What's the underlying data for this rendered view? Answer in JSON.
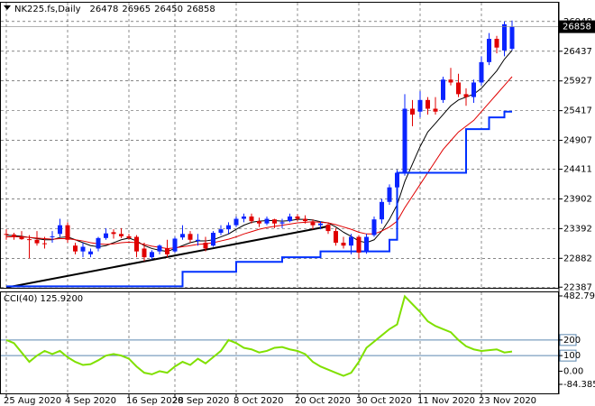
{
  "chart_data": [
    {
      "type": "candlestick",
      "title": "NK225.fs,Daily",
      "categories": [
        "25 Aug 2020",
        null,
        null,
        null,
        null,
        null,
        null,
        null,
        "4 Sep 2020",
        null,
        null,
        null,
        null,
        null,
        null,
        null,
        "16 Sep 2020",
        null,
        null,
        null,
        null,
        null,
        "28 Sep 2020",
        null,
        null,
        null,
        null,
        null,
        null,
        null,
        "8 Oct 2020",
        null,
        null,
        null,
        null,
        null,
        null,
        null,
        "20 Oct 2020",
        null,
        null,
        null,
        null,
        null,
        null,
        null,
        "30 Oct 2020",
        null,
        null,
        null,
        null,
        null,
        null,
        null,
        "11 Nov 2020",
        null,
        null,
        null,
        null,
        null,
        null,
        null,
        "23 Nov 2020",
        null,
        null,
        null,
        null
      ],
      "open": [
        23300,
        23290,
        23250,
        23210,
        23200,
        23140,
        23250,
        23300,
        23450,
        23100,
        23000,
        22950,
        23050,
        23230,
        23330,
        23300,
        23260,
        23250,
        23050,
        22900,
        23000,
        23050,
        23000,
        23240,
        23300,
        23180,
        23150,
        23100,
        23320,
        23380,
        23450,
        23560,
        23600,
        23520,
        23480,
        23550,
        23480,
        23520,
        23600,
        23560,
        23500,
        23450,
        23460,
        23350,
        23150,
        23100,
        23250,
        23000,
        23280,
        23550,
        23850,
        24100,
        24350,
        25450,
        25400,
        25600,
        25450,
        25600,
        25950,
        25900,
        25700,
        25650,
        25900,
        26250,
        26650,
        26450,
        26478
      ],
      "high": [
        23380,
        23320,
        23350,
        23280,
        23350,
        23250,
        23350,
        23560,
        23500,
        23150,
        23150,
        23050,
        23250,
        23400,
        23380,
        23400,
        23300,
        23280,
        23150,
        23020,
        23120,
        23200,
        23250,
        23450,
        23350,
        23300,
        23250,
        23350,
        23450,
        23500,
        23600,
        23650,
        23650,
        23580,
        23600,
        23560,
        23560,
        23650,
        23640,
        23620,
        23550,
        23520,
        23500,
        23400,
        23250,
        23300,
        23280,
        23300,
        23600,
        23900,
        24150,
        24400,
        25700,
        25600,
        25750,
        25650,
        25650,
        26000,
        26150,
        26050,
        25800,
        25950,
        26350,
        26750,
        26700,
        26950,
        26965
      ],
      "low": [
        23200,
        23200,
        23200,
        22880,
        23100,
        23050,
        23150,
        23250,
        23150,
        22950,
        22900,
        22900,
        23000,
        23200,
        23220,
        23230,
        23200,
        22900,
        22830,
        22860,
        22950,
        22900,
        22980,
        23200,
        23150,
        23100,
        23000,
        23080,
        23280,
        23300,
        23420,
        23500,
        23480,
        23420,
        23450,
        23400,
        23400,
        23500,
        23520,
        23480,
        23380,
        23380,
        23300,
        23100,
        23050,
        22950,
        22880,
        22960,
        23250,
        23480,
        23800,
        24050,
        24300,
        25150,
        25300,
        25350,
        25350,
        25550,
        25850,
        25650,
        25500,
        25550,
        25850,
        26200,
        26400,
        26350,
        26450
      ],
      "close": [
        23290,
        23250,
        23210,
        23200,
        23140,
        23130,
        23260,
        23450,
        23200,
        23000,
        23080,
        23000,
        23230,
        23310,
        23300,
        23260,
        23230,
        23000,
        22900,
        22990,
        23100,
        22950,
        23220,
        23300,
        23200,
        23200,
        23050,
        23320,
        23380,
        23450,
        23560,
        23600,
        23520,
        23480,
        23560,
        23480,
        23500,
        23600,
        23560,
        23520,
        23450,
        23480,
        23350,
        23150,
        23100,
        23250,
        22980,
        23250,
        23550,
        23850,
        24100,
        24350,
        25450,
        25350,
        25600,
        25450,
        25400,
        25950,
        25900,
        25700,
        25650,
        25900,
        26250,
        26650,
        26500,
        26900,
        26858
      ],
      "up_color": "#0a24ff",
      "down_color": "#e00000",
      "overlays": [
        {
          "color": "#000000",
          "width": 1,
          "values": [
            23280,
            23270,
            23260,
            23240,
            23220,
            23200,
            23200,
            23240,
            23250,
            23200,
            23150,
            23100,
            23080,
            23100,
            23150,
            23200,
            23230,
            23180,
            23100,
            23050,
            23020,
            23000,
            23050,
            23100,
            23150,
            23180,
            23180,
            23200,
            23250,
            23300,
            23380,
            23450,
            23500,
            23520,
            23530,
            23530,
            23520,
            23530,
            23550,
            23550,
            23540,
            23510,
            23490,
            23420,
            23330,
            23260,
            23180,
            23150,
            23200,
            23350,
            23550,
            23800,
            24200,
            24500,
            24800,
            25050,
            25200,
            25350,
            25500,
            25600,
            25650,
            25700,
            25800,
            25950,
            26100,
            26300,
            26450
          ]
        },
        {
          "color": "#e00000",
          "width": 1,
          "values": [
            23250,
            23250,
            23250,
            23240,
            23230,
            23220,
            23210,
            23220,
            23220,
            23200,
            23180,
            23150,
            23130,
            23120,
            23130,
            23150,
            23160,
            23150,
            23120,
            23090,
            23070,
            23050,
            23060,
            23080,
            23100,
            23120,
            23130,
            23150,
            23180,
            23210,
            23250,
            23300,
            23340,
            23380,
            23410,
            23430,
            23450,
            23470,
            23490,
            23500,
            23510,
            23500,
            23490,
            23460,
            23420,
            23380,
            23330,
            23300,
            23300,
            23350,
            23420,
            23520,
            23750,
            23950,
            24150,
            24350,
            24550,
            24750,
            24900,
            25050,
            25150,
            25250,
            25400,
            25550,
            25700,
            25850,
            26000
          ]
        },
        {
          "color": "#0030ff",
          "width": 2,
          "step": true,
          "values": [
            22400,
            22400,
            22400,
            22400,
            22400,
            22400,
            22400,
            22400,
            22400,
            22400,
            22400,
            22400,
            22400,
            22400,
            22400,
            22400,
            22400,
            22400,
            22400,
            22400,
            22400,
            22400,
            22400,
            22650,
            22650,
            22650,
            22650,
            22650,
            22650,
            22650,
            22820,
            22820,
            22820,
            22820,
            22820,
            22820,
            22900,
            22900,
            22900,
            22900,
            22900,
            23000,
            23000,
            23000,
            23000,
            23000,
            23000,
            23000,
            23000,
            23000,
            23200,
            24350,
            24350,
            24350,
            24350,
            24350,
            24350,
            24350,
            24350,
            24350,
            25100,
            25100,
            25100,
            25300,
            25300,
            25400,
            25400
          ]
        }
      ],
      "trendline": {
        "color": "#000000",
        "x": [
          0,
          42
        ],
        "values": [
          22380,
          23430
        ]
      },
      "ylim": [
        22360,
        27270
      ],
      "yticks": [
        22387,
        22882,
        23392,
        23902,
        24411,
        24907,
        25417,
        25927,
        26437,
        26948
      ],
      "grid": true
    },
    {
      "type": "line",
      "title": "CCI(40)",
      "current_label": "125.9200",
      "color": "#80e000",
      "values": [
        200,
        180,
        120,
        60,
        100,
        130,
        110,
        130,
        90,
        60,
        40,
        45,
        70,
        100,
        110,
        100,
        80,
        30,
        -10,
        -20,
        0,
        -10,
        30,
        60,
        40,
        80,
        50,
        90,
        130,
        200,
        180,
        150,
        140,
        120,
        130,
        150,
        155,
        140,
        130,
        110,
        60,
        30,
        10,
        -10,
        -30,
        -10,
        60,
        150,
        190,
        230,
        270,
        300,
        480,
        430,
        380,
        320,
        290,
        270,
        250,
        200,
        160,
        140,
        130,
        135,
        140,
        120,
        125.92
      ],
      "ylim": [
        -84.3857,
        482.7966
      ],
      "yticks": [
        482.7966,
        200,
        100,
        {
          "value": 0,
          "label": "0.00"
        },
        -84.3857
      ],
      "levels": [
        200,
        100
      ],
      "level_color": "#5b87b0"
    }
  ]
}
